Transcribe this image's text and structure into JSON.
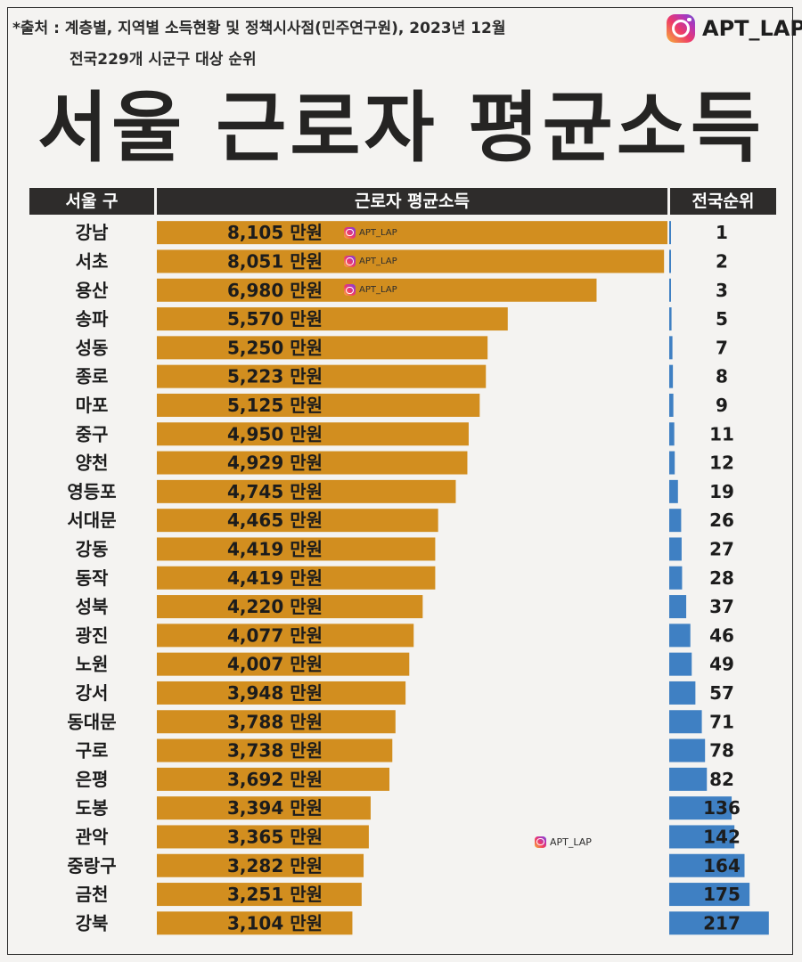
{
  "header": {
    "source": "*출처 : 계층별, 지역별 소득현황 및 정책시사점(민주연구원), 2023년 12월",
    "scope": "전국229개 시군구 대상 순위",
    "brand": "APT_LAP",
    "title": "서울 근로자 평균소득"
  },
  "watermark": "APT_LAP",
  "colors": {
    "income_bar": "#d28e1f",
    "rank_bar": "#3f80c3",
    "header_bg": "#2e2c2b",
    "title": "#252423"
  },
  "chart_data": {
    "type": "bar",
    "columns": [
      "서울 구",
      "근로자 평균소득",
      "전국순위"
    ],
    "unit": "만원",
    "categories": [
      "강남",
      "서초",
      "용산",
      "송파",
      "성동",
      "종로",
      "마포",
      "중구",
      "양천",
      "영등포",
      "서대문",
      "강동",
      "동작",
      "성북",
      "광진",
      "노원",
      "강서",
      "동대문",
      "구로",
      "은평",
      "도봉",
      "관악",
      "중랑구",
      "금천",
      "강북"
    ],
    "values": [
      8105,
      8051,
      6980,
      5570,
      5250,
      5223,
      5125,
      4950,
      4929,
      4745,
      4465,
      4419,
      4419,
      4220,
      4077,
      4007,
      3948,
      3788,
      3738,
      3692,
      3394,
      3365,
      3282,
      3251,
      3104
    ],
    "value_labels": [
      "8,105 만원",
      "8,051 만원",
      "6,980 만원",
      "5,570 만원",
      "5,250 만원",
      "5,223 만원",
      "5,125 만원",
      "4,950 만원",
      "4,929 만원",
      "4,745 만원",
      "4,465 만원",
      "4,419 만원",
      "4,419 만원",
      "4,220 만원",
      "4,077 만원",
      "4,007 만원",
      "3,948 만원",
      "3,788 만원",
      "3,738 만원",
      "3,692 만원",
      "3,394 만원",
      "3,365 만원",
      "3,282 만원",
      "3,251 만원",
      "3,104 만원"
    ],
    "ranks": [
      1,
      2,
      3,
      5,
      7,
      8,
      9,
      11,
      12,
      19,
      26,
      27,
      28,
      37,
      46,
      49,
      57,
      71,
      78,
      82,
      136,
      142,
      164,
      175,
      217
    ],
    "rank_range": [
      0,
      229
    ]
  }
}
